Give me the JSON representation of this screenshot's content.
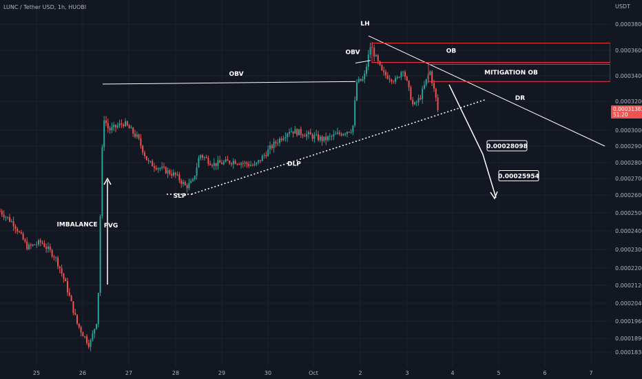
{
  "symbol": "LUNC / Tether USD, 1h, HUOBI",
  "currency": "USDT",
  "last_price": {
    "value": "0.00031383",
    "countdown": "51:20",
    "price": 0.00031383
  },
  "colors": {
    "up": "#26a69a",
    "down": "#ef5350",
    "background": "#131722",
    "grid": "#1e222d",
    "zone": "#f23645",
    "annotation": "#ffffff"
  },
  "chart_data": {
    "type": "candlestick",
    "title": "LUNC / Tether USD, 1h, HUOBI",
    "x_ticks": [
      "25",
      "26",
      "27",
      "28",
      "29",
      "30",
      "Oct",
      "2",
      "3",
      "4",
      "5",
      "6",
      "7"
    ],
    "y_ticks": [
      "0.00038000",
      "0.00036000",
      "0.00034000",
      "0.00032000",
      "0.00030000",
      "0.00029000",
      "0.00028000",
      "0.00027000",
      "0.00026000",
      "0.00025000",
      "0.00024000",
      "0.00023000",
      "0.00022000",
      "0.00021200",
      "0.00020400",
      "0.00019600",
      "0.00018900",
      "0.00018300"
    ],
    "key_points": [
      {
        "t": 0,
        "price": 0.000251
      },
      {
        "t": 20,
        "price": 0.000244
      },
      {
        "t": 40,
        "price": 0.000231
      },
      {
        "t": 60,
        "price": 0.000234
      },
      {
        "t": 80,
        "price": 0.000226
      },
      {
        "t": 96,
        "price": 0.000212
      },
      {
        "t": 112,
        "price": 0.000195
      },
      {
        "t": 130,
        "price": 0.000186
      },
      {
        "t": 142,
        "price": 0.000198
      },
      {
        "t": 150,
        "price": 0.00031
      },
      {
        "t": 158,
        "price": 0.0003
      },
      {
        "t": 180,
        "price": 0.000305
      },
      {
        "t": 200,
        "price": 0.000295
      },
      {
        "t": 215,
        "price": 0.00028
      },
      {
        "t": 235,
        "price": 0.000276
      },
      {
        "t": 255,
        "price": 0.000272
      },
      {
        "t": 270,
        "price": 0.000265
      },
      {
        "t": 280,
        "price": 0.000268
      },
      {
        "t": 290,
        "price": 0.000285
      },
      {
        "t": 310,
        "price": 0.000279
      },
      {
        "t": 340,
        "price": 0.000281
      },
      {
        "t": 370,
        "price": 0.000278
      },
      {
        "t": 395,
        "price": 0.00029
      },
      {
        "t": 420,
        "price": 0.0003
      },
      {
        "t": 440,
        "price": 0.000298
      },
      {
        "t": 470,
        "price": 0.000294
      },
      {
        "t": 500,
        "price": 0.000299
      },
      {
        "t": 512,
        "price": 0.000301
      },
      {
        "t": 518,
        "price": 0.000335
      },
      {
        "t": 528,
        "price": 0.000337
      },
      {
        "t": 538,
        "price": 0.000364
      },
      {
        "t": 555,
        "price": 0.000342
      },
      {
        "t": 575,
        "price": 0.000336
      },
      {
        "t": 585,
        "price": 0.000346
      },
      {
        "t": 600,
        "price": 0.000316
      },
      {
        "t": 610,
        "price": 0.000323
      },
      {
        "t": 624,
        "price": 0.000344
      },
      {
        "t": 636,
        "price": 0.000314
      }
    ],
    "annotations": {
      "labels": [
        {
          "text": "LH",
          "t": 530,
          "price": 0.000379
        },
        {
          "text": "OBV",
          "t": 512,
          "price": 0.000357
        },
        {
          "text": "OB",
          "t": 655,
          "price": 0.000358
        },
        {
          "text": "MITIGATION OB",
          "t": 742,
          "price": 0.000341
        },
        {
          "text": "OBV",
          "t": 343,
          "price": 0.00034
        },
        {
          "text": "DR",
          "t": 755,
          "price": 0.000321
        },
        {
          "text": "DLP",
          "t": 427,
          "price": 0.000278
        },
        {
          "text": "SLP",
          "t": 261,
          "price": 0.0002585
        },
        {
          "text": "IMBALANCE",
          "t": 112,
          "price": 0.0002425
        },
        {
          "text": "FVG",
          "t": 161,
          "price": 0.000242
        }
      ],
      "price_callouts": [
        {
          "text": "0.00028098",
          "t": 731,
          "price": 0.00029,
          "price_num": 0.00028098
        },
        {
          "text": "0.00025954",
          "t": 748,
          "price": 0.0002715,
          "price_num": 0.00025954
        }
      ]
    }
  }
}
